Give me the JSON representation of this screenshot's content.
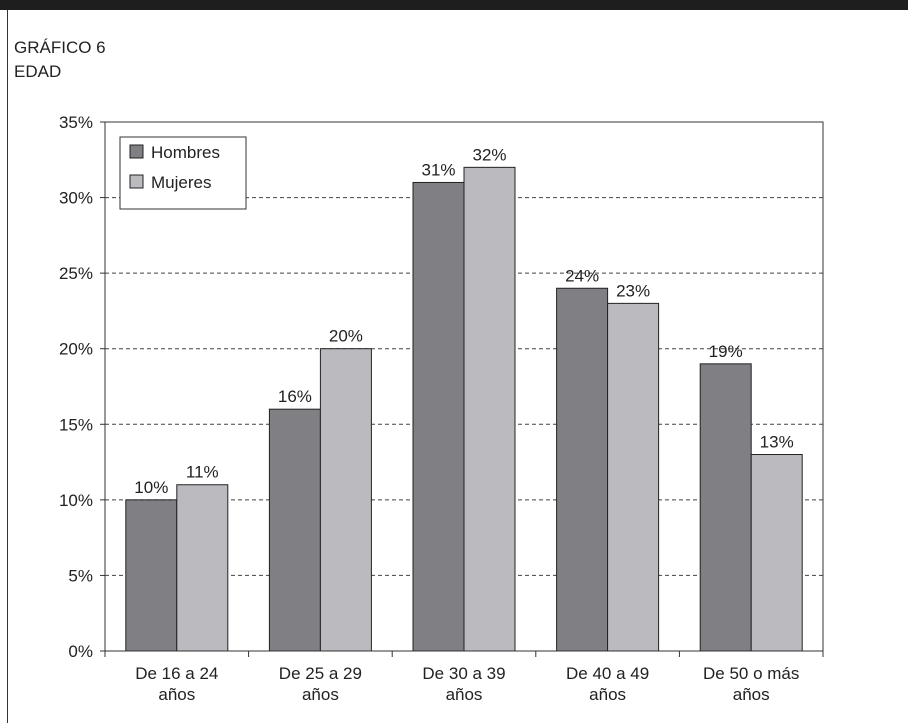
{
  "header": {
    "figure_label": "GRÁFICO 6",
    "figure_title": "EDAD"
  },
  "chart_data": {
    "type": "bar",
    "categories": [
      [
        "De 16 a 24",
        "años"
      ],
      [
        "De 25 a 29",
        "años"
      ],
      [
        "De 30 a 39",
        "años"
      ],
      [
        "De 40 a 49",
        "años"
      ],
      [
        "De 50 o más",
        "años"
      ]
    ],
    "series": [
      {
        "name": "Hombres",
        "values": [
          10,
          16,
          31,
          24,
          19
        ],
        "labels": [
          "10%",
          "16%",
          "31%",
          "24%",
          "19%"
        ],
        "color": "#7f7f84"
      },
      {
        "name": "Mujeres",
        "values": [
          11,
          20,
          32,
          23,
          13
        ],
        "labels": [
          "11%",
          "20%",
          "32%",
          "23%",
          "13%"
        ],
        "color": "#bbbbbf"
      }
    ],
    "ylim": [
      0,
      35
    ],
    "yticks": [
      0,
      5,
      10,
      15,
      20,
      25,
      30,
      35
    ],
    "ytick_labels": [
      "0%",
      "5%",
      "10%",
      "15%",
      "20%",
      "25%",
      "30%",
      "35%"
    ],
    "grid": "horizontal dashed",
    "legend": "top-left",
    "title": "",
    "xlabel": "",
    "ylabel": ""
  }
}
